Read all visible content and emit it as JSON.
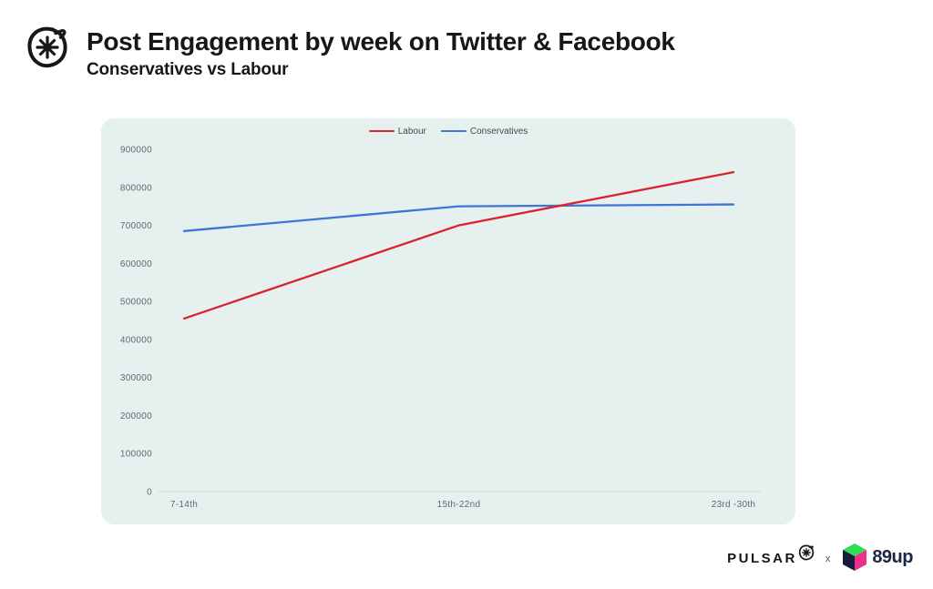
{
  "header": {
    "title": "Post Engagement by week on Twitter & Facebook",
    "subtitle": "Conservatives vs Labour"
  },
  "chart_data": {
    "type": "line",
    "title": "Post Engagement by week on Twitter & Facebook",
    "subtitle": "Conservatives vs Labour",
    "categories": [
      "7-14th",
      "15th-22nd",
      "23rd -30th"
    ],
    "series": [
      {
        "name": "Labour",
        "color": "#d9232e",
        "values": [
          455000,
          700000,
          840000
        ]
      },
      {
        "name": "Conservatives",
        "color": "#3d76d6",
        "values": [
          685000,
          750000,
          755000
        ]
      }
    ],
    "xlabel": "",
    "ylabel": "",
    "ylim": [
      0,
      900000
    ],
    "y_ticks": [
      0,
      100000,
      200000,
      300000,
      400000,
      500000,
      600000,
      700000,
      800000,
      900000
    ],
    "grid": false,
    "legend_position": "top-center",
    "colors": {
      "panel_bg": "#e6f1ef",
      "axis_line": "#c9d9d6",
      "tick_text": "#5a6a6e",
      "legend_text": "#3e4a52"
    }
  },
  "footer": {
    "pulsar_label": "PULSAR",
    "separator": "x",
    "brand_label": "89up",
    "brand_colors": {
      "top": "#2ee051",
      "right": "#ef2d8a",
      "left": "#161d3a"
    }
  }
}
